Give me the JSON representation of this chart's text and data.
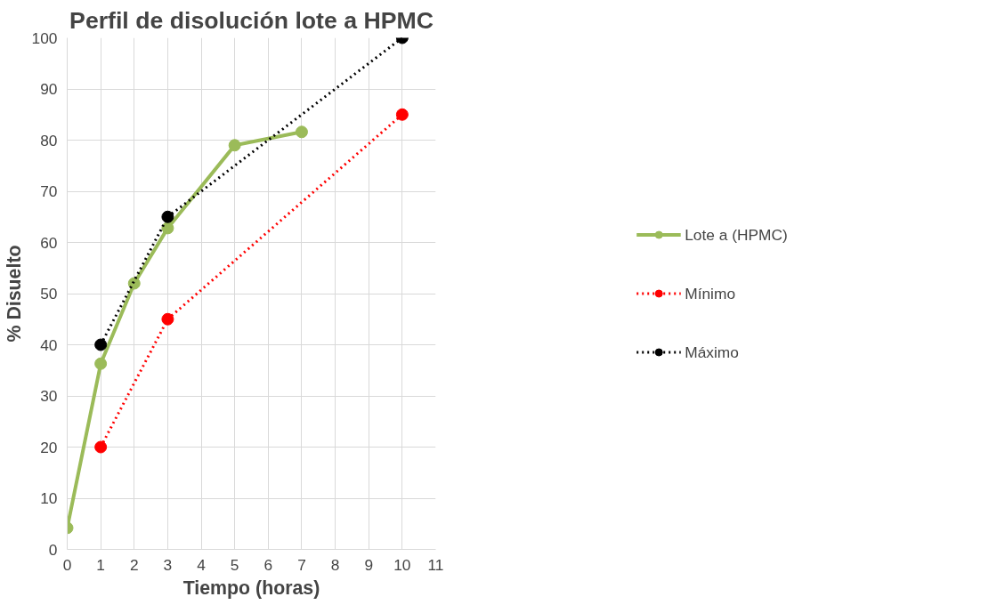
{
  "chart_data": {
    "type": "line",
    "title": "Perfil de disolución lote a HPMC",
    "xlabel": "Tiempo (horas)",
    "ylabel": "% Disuelto",
    "xlim": [
      0,
      11
    ],
    "xticks": [
      0,
      1,
      2,
      3,
      4,
      5,
      6,
      7,
      8,
      9,
      10,
      11
    ],
    "ylim": [
      0,
      100
    ],
    "yticks": [
      0,
      10,
      20,
      30,
      40,
      50,
      60,
      70,
      80,
      90,
      100
    ],
    "grid": true,
    "legend": "right",
    "marker": "circle",
    "series": [
      {
        "name": "Lote a (HPMC)",
        "color": "#9bbb59",
        "x": [
          0,
          1,
          2,
          3,
          5,
          7
        ],
        "values": [
          4.2,
          36.3,
          52,
          62.8,
          79,
          81.6
        ],
        "line_style": "solid"
      },
      {
        "name": "Mínimo",
        "color": "#ff0000",
        "x": [
          1,
          3,
          10
        ],
        "values": [
          20,
          45,
          85
        ],
        "line_style": "dotted"
      },
      {
        "name": "Máximo",
        "color": "#000000",
        "x": [
          1,
          3,
          10
        ],
        "values": [
          40,
          65,
          100
        ],
        "line_style": "dotted"
      }
    ]
  }
}
